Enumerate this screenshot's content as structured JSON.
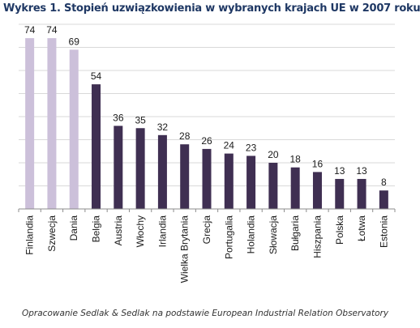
{
  "chart_data": {
    "type": "bar",
    "title": "Wykres 1. Stopień uzwiązkowienia w wybranych krajach UE w 2007 roku",
    "categories": [
      "Finlandia",
      "Szwecja",
      "Dania",
      "Belgia",
      "Austria",
      "Włochy",
      "Irlandia",
      "Wielka Brytania",
      "Grecja",
      "Portugalia",
      "Holandia",
      "Słowacja",
      "Bułgaria",
      "Hiszpania",
      "Polska",
      "Łotwa",
      "Estonia"
    ],
    "values": [
      74,
      74,
      69,
      54,
      36,
      35,
      32,
      28,
      26,
      24,
      23,
      20,
      18,
      16,
      13,
      13,
      8
    ],
    "highlight_colors": [
      "#ccc0da",
      "#ccc0da",
      "#ccc0da",
      "#3f2f52",
      "#3f2f52",
      "#3f2f52",
      "#3f2f52",
      "#3f2f52",
      "#3f2f52",
      "#3f2f52",
      "#3f2f52",
      "#3f2f52",
      "#3f2f52",
      "#3f2f52",
      "#3f2f52",
      "#3f2f52",
      "#3f2f52"
    ],
    "ylim": [
      0,
      80
    ],
    "grid": true,
    "data_labels": true,
    "xlabel": "",
    "ylabel": ""
  },
  "source_note": "Opracowanie Sedlak & Sedlak na podstawie European Industrial  Relation Observatory"
}
